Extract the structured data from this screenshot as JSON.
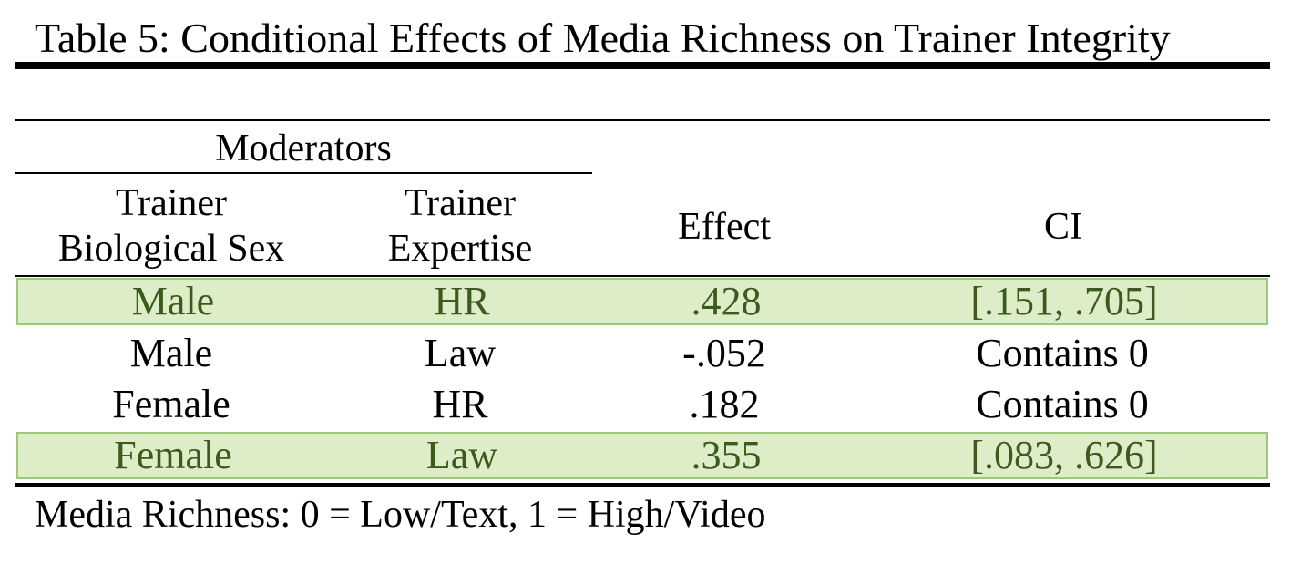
{
  "table": {
    "title": "Table 5: Conditional Effects of Media Richness on Trainer Integrity",
    "moderators_label": "Moderators",
    "headers": {
      "sex": [
        "Trainer",
        "Biological Sex"
      ],
      "expertise": [
        "Trainer",
        "Expertise"
      ],
      "effect": "Effect",
      "ci": "CI"
    },
    "rows": [
      {
        "sex": "Male",
        "expertise": "HR",
        "effect": ".428",
        "ci": "[.151, .705]",
        "highlighted": true
      },
      {
        "sex": "Male",
        "expertise": "Law",
        "effect": "-.052",
        "ci": "Contains 0",
        "highlighted": false
      },
      {
        "sex": "Female",
        "expertise": "HR",
        "effect": ".182",
        "ci": "Contains 0",
        "highlighted": false
      },
      {
        "sex": "Female",
        "expertise": "Law",
        "effect": ".355",
        "ci": "[.083, .626]",
        "highlighted": true
      }
    ],
    "note": "Media Richness: 0 = Low/Text, 1 = High/Video"
  },
  "colors": {
    "highlight_fill": "#dcedc8",
    "highlight_border": "#9fc77a",
    "highlight_text": "#3d5a1e"
  }
}
